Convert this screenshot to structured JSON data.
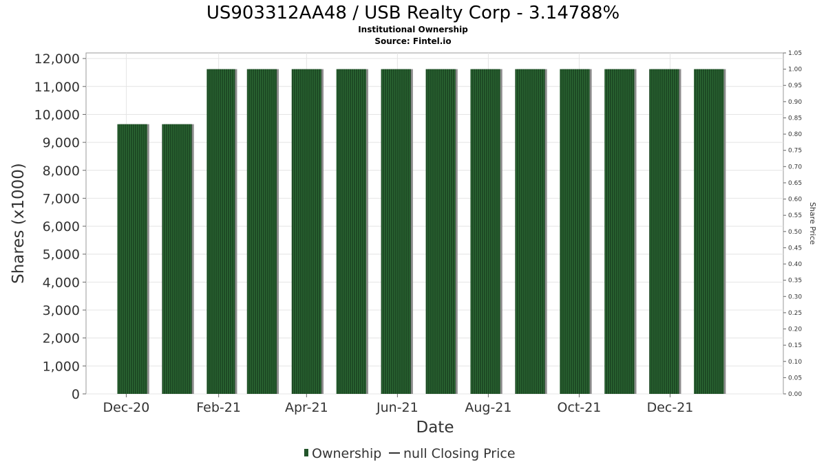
{
  "chart_data": {
    "type": "bar",
    "title": "US903312AA48 / USB Realty Corp - 3.14788%",
    "subtitle_lines": [
      "Institutional Ownership",
      "Source: Fintel.io"
    ],
    "xlabel": "Date",
    "ylabel": "Shares (x1000)",
    "y2label": "Share Price",
    "ylim": [
      0,
      12200
    ],
    "y2lim": [
      0,
      1.05
    ],
    "yticks": [
      0,
      1000,
      2000,
      3000,
      4000,
      5000,
      6000,
      7000,
      8000,
      9000,
      10000,
      11000,
      12000
    ],
    "ytick_labels": [
      "0",
      "1,000",
      "2,000",
      "3,000",
      "4,000",
      "5,000",
      "6,000",
      "7,000",
      "8,000",
      "9,000",
      "10,000",
      "11,000",
      "12,000"
    ],
    "y2ticks": [
      "0.00",
      "0.05",
      "0.10",
      "0.15",
      "0.20",
      "0.25",
      "0.30",
      "0.35",
      "0.40",
      "0.45",
      "0.50",
      "0.55",
      "0.60",
      "0.65",
      "0.70",
      "0.75",
      "0.80",
      "0.85",
      "0.90",
      "0.95",
      "1.00",
      "1.05"
    ],
    "x_range": [
      "2020-11-04",
      "2022-02-15"
    ],
    "xticks": [
      {
        "label": "Dec-20",
        "date": "2020-12-01"
      },
      {
        "label": "Feb-21",
        "date": "2021-02-01"
      },
      {
        "label": "Apr-21",
        "date": "2021-04-01"
      },
      {
        "label": "Jun-21",
        "date": "2021-06-01"
      },
      {
        "label": "Aug-21",
        "date": "2021-08-01"
      },
      {
        "label": "Oct-21",
        "date": "2021-10-01"
      },
      {
        "label": "Dec-21",
        "date": "2021-12-01"
      }
    ],
    "series": [
      {
        "name": "Ownership",
        "color": "#1d4a24",
        "points": [
          {
            "start": "2020-11-25",
            "end": "2020-12-15",
            "value": 9650
          },
          {
            "start": "2020-12-25",
            "end": "2021-01-14",
            "value": 9650
          },
          {
            "start": "2021-01-24",
            "end": "2021-02-12",
            "value": 11620
          },
          {
            "start": "2021-02-20",
            "end": "2021-03-12",
            "value": 11620
          },
          {
            "start": "2021-03-22",
            "end": "2021-04-11",
            "value": 11620
          },
          {
            "start": "2021-04-21",
            "end": "2021-05-11",
            "value": 11620
          },
          {
            "start": "2021-05-21",
            "end": "2021-06-10",
            "value": 11620
          },
          {
            "start": "2021-06-20",
            "end": "2021-07-10",
            "value": 11620
          },
          {
            "start": "2021-07-20",
            "end": "2021-08-09",
            "value": 11620
          },
          {
            "start": "2021-08-19",
            "end": "2021-09-08",
            "value": 11620
          },
          {
            "start": "2021-09-18",
            "end": "2021-10-08",
            "value": 11620
          },
          {
            "start": "2021-10-18",
            "end": "2021-11-07",
            "value": 11620
          },
          {
            "start": "2021-11-17",
            "end": "2021-12-07",
            "value": 11620
          },
          {
            "start": "2021-12-17",
            "end": "2022-01-06",
            "value": 11620
          }
        ]
      },
      {
        "name": "null Closing Price",
        "color": "#333333",
        "points": []
      }
    ],
    "grid": true,
    "legend": "bottom-center"
  }
}
